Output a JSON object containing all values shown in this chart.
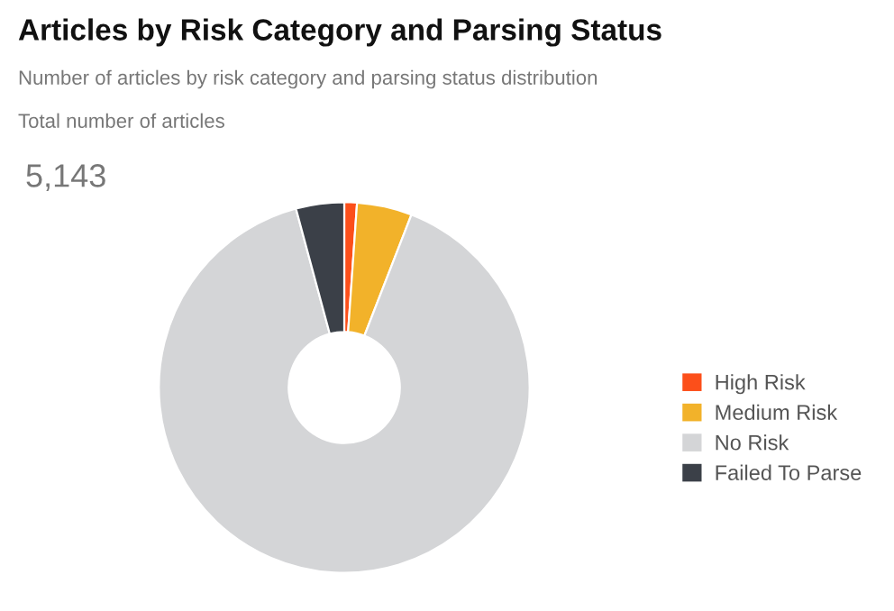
{
  "chart_data": {
    "type": "donut",
    "title": "Articles by Risk Category and Parsing Status",
    "subtitle": "Number of articles by risk category and parsing status distribution",
    "annotations": [
      "Total number of articles",
      "5,143"
    ],
    "categories": [
      "High Risk",
      "Medium Risk",
      "No Risk",
      "Failed To Parse"
    ],
    "values": [
      1.1,
      4.8,
      89.9,
      4.2
    ],
    "colors": [
      "#fc4f1a",
      "#f2b22a",
      "#d4d5d7",
      "#3b4048"
    ],
    "legend": "right"
  }
}
